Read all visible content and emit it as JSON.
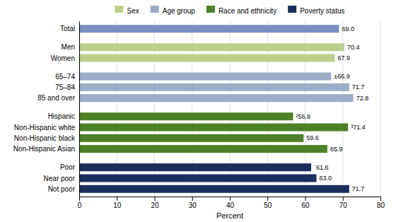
{
  "chart_data": {
    "type": "bar",
    "orientation": "horizontal",
    "xlabel": "Percent",
    "categories": [
      "Total",
      "Men",
      "Women",
      "65–74",
      "75–84",
      "85 and over",
      "Hispanic",
      "Non-Hispanic white",
      "Non-Hispanic black",
      "Non-Hispanic Asian",
      "Poor",
      "Near poor",
      "Not poor"
    ],
    "series": [
      {
        "color": "#7b8fc2",
        "values": [
          69.0,
          null,
          null,
          null,
          null,
          null,
          null,
          null,
          null,
          null,
          null,
          null,
          null
        ],
        "value_labels": [
          "69.0",
          null,
          null,
          null,
          null,
          null,
          null,
          null,
          null,
          null,
          null,
          null,
          null
        ]
      },
      {
        "name": "Sex",
        "color": "#bccf8a",
        "values": [
          null,
          70.4,
          67.9,
          null,
          null,
          null,
          null,
          null,
          null,
          null,
          null,
          null,
          null
        ],
        "value_labels": [
          null,
          "70.4",
          "67.9",
          null,
          null,
          null,
          null,
          null,
          null,
          null,
          null,
          null,
          null
        ]
      },
      {
        "name": "Age group",
        "color": "#9dadc8",
        "values": [
          null,
          null,
          null,
          66.9,
          71.7,
          72.8,
          null,
          null,
          null,
          null,
          null,
          null,
          null
        ],
        "value_labels": [
          null,
          null,
          null,
          "±66.9",
          "71.7",
          "72.8",
          null,
          null,
          null,
          null,
          null,
          null,
          null
        ]
      },
      {
        "name": "Race and ethnicity",
        "color": "#4e8027",
        "values": [
          null,
          null,
          null,
          null,
          null,
          null,
          56.8,
          71.4,
          59.6,
          65.9,
          null,
          null,
          null
        ],
        "value_labels": [
          null,
          null,
          null,
          null,
          null,
          null,
          "²56.8",
          "³71.4",
          "59.6",
          "65.9",
          null,
          null,
          null
        ]
      },
      {
        "name": "Poverty status",
        "color": "#1a2f5e",
        "values": [
          null,
          null,
          null,
          null,
          null,
          null,
          null,
          null,
          null,
          null,
          61.6,
          63.0,
          71.7
        ],
        "value_labels": [
          null,
          null,
          null,
          null,
          null,
          null,
          null,
          null,
          null,
          null,
          "´61.6",
          "63.0",
          "71.7"
        ]
      }
    ],
    "xlim": [
      0,
      80
    ],
    "xticks": [
      0,
      10,
      20,
      30,
      40,
      50,
      60,
      70,
      80
    ],
    "grid": true,
    "legend": "top",
    "data_labels": true
  }
}
